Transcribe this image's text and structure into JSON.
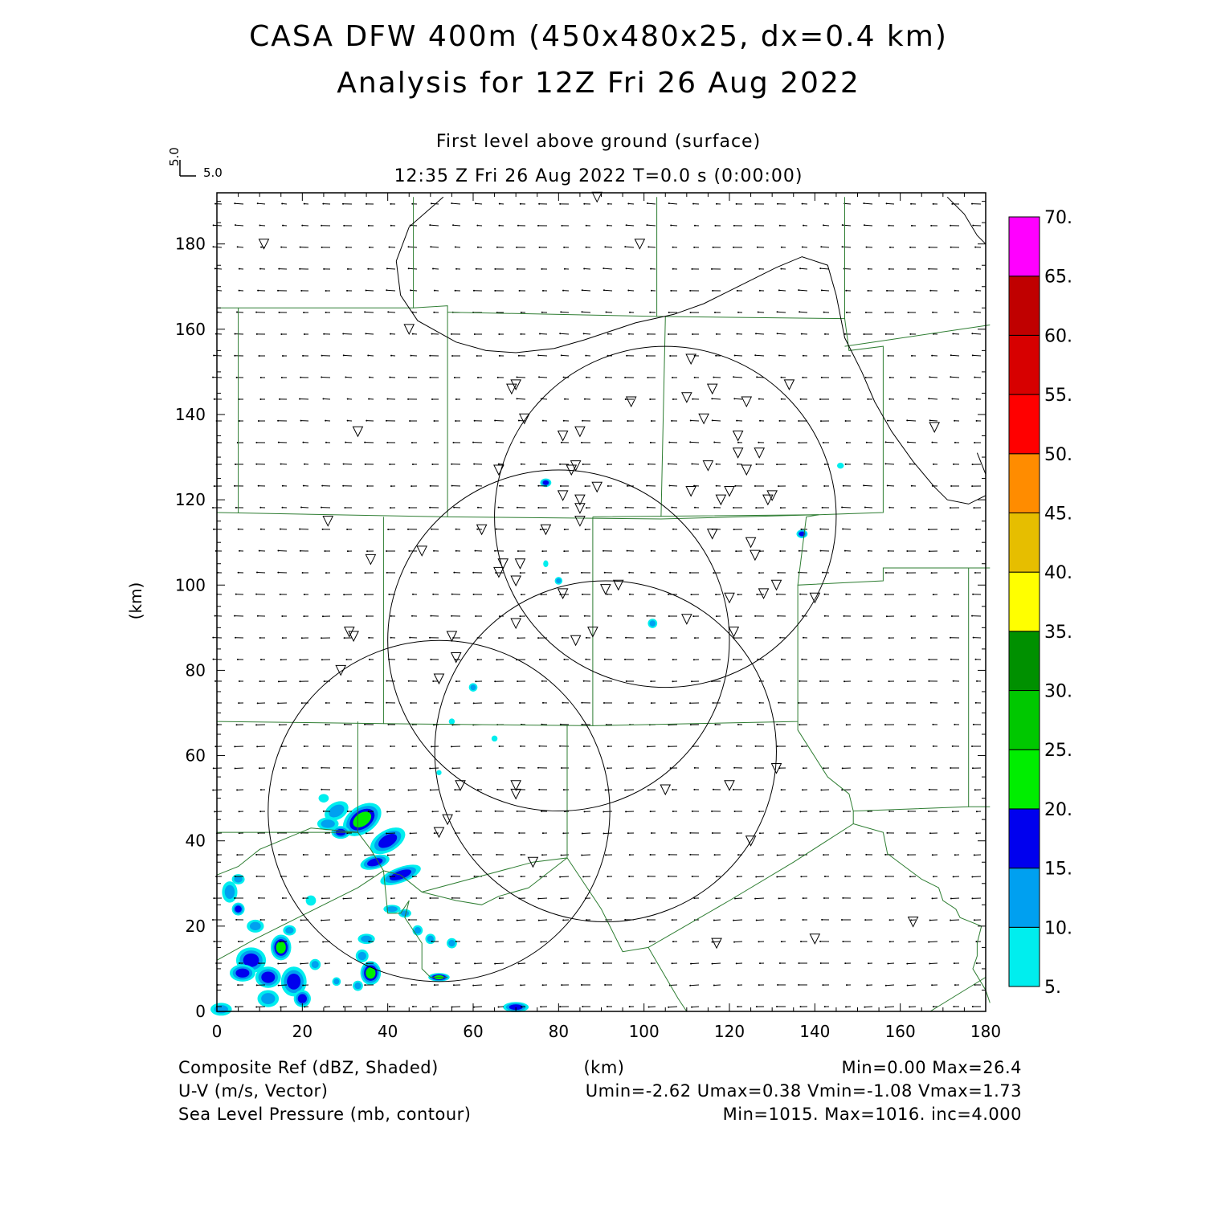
{
  "title": {
    "line1": "CASA DFW 400m (450x480x25, dx=0.4 km)",
    "line2": "Analysis for 12Z Fri 26 Aug 2022"
  },
  "subtitle": {
    "level": "First level above ground (surface)",
    "time": "12:35 Z Fri 26 Aug 2022    T=0.0 s (0:00:00)"
  },
  "vector_key": {
    "v": "5.0",
    "u": "5.0"
  },
  "axes": {
    "x": {
      "label": "(km)",
      "range": [
        0,
        180
      ],
      "ticks": [
        "0",
        "20",
        "40",
        "60",
        "80",
        "100",
        "120",
        "140",
        "160",
        "180"
      ]
    },
    "y": {
      "label": "(km)",
      "range": [
        0,
        192
      ],
      "ticks": [
        "0",
        "20",
        "40",
        "60",
        "80",
        "100",
        "120",
        "140",
        "160",
        "180"
      ]
    }
  },
  "colorbar": {
    "labels": [
      "5.",
      "10.",
      "15.",
      "20.",
      "25.",
      "30.",
      "35.",
      "40.",
      "45.",
      "50.",
      "55.",
      "60.",
      "65.",
      "70."
    ],
    "colors": [
      "#00eeee",
      "#00a0f0",
      "#0000ee",
      "#00ee00",
      "#00c800",
      "#009000",
      "#ffff00",
      "#e6be00",
      "#ff8c00",
      "#ff0000",
      "#d70000",
      "#c00000",
      "#ff00ff"
    ]
  },
  "footer": {
    "ref_label": "Composite Ref (dBZ, Shaded)",
    "ref_stats": "Min=0.00 Max=26.4",
    "km_label": "(km)",
    "wind_label": "U-V (m/s, Vector)",
    "wind_stats": "Umin=-2.62 Umax=0.38 Vmin=-1.08 Vmax=1.73",
    "slp_label": "Sea Level Pressure (mb, contour)",
    "slp_stats": "Min=1015. Max=1016. inc=4.000"
  },
  "map_data": {
    "radar_rings_km": [
      {
        "cx": 105,
        "cy": 116,
        "r": 40
      },
      {
        "cx": 80,
        "cy": 87,
        "r": 40
      },
      {
        "cx": 91,
        "cy": 61,
        "r": 40
      },
      {
        "cx": 52,
        "cy": 47,
        "r": 40
      }
    ],
    "stations_km": [
      [
        89,
        191
      ],
      [
        11,
        180
      ],
      [
        99,
        180
      ],
      [
        45,
        160
      ],
      [
        70,
        147
      ],
      [
        69,
        146
      ],
      [
        111,
        153
      ],
      [
        116,
        146
      ],
      [
        134,
        147
      ],
      [
        97,
        143
      ],
      [
        110,
        144
      ],
      [
        124,
        143
      ],
      [
        72,
        139
      ],
      [
        114,
        139
      ],
      [
        81,
        135
      ],
      [
        85,
        136
      ],
      [
        122,
        135
      ],
      [
        168,
        137
      ],
      [
        33,
        136
      ],
      [
        122,
        131
      ],
      [
        127,
        131
      ],
      [
        115,
        128
      ],
      [
        124,
        127
      ],
      [
        66,
        127
      ],
      [
        83,
        127
      ],
      [
        84,
        128
      ],
      [
        89,
        123
      ],
      [
        81,
        121
      ],
      [
        111,
        122
      ],
      [
        120,
        122
      ],
      [
        130,
        121
      ],
      [
        129,
        120
      ],
      [
        118,
        120
      ],
      [
        85,
        120
      ],
      [
        85,
        118
      ],
      [
        85,
        115
      ],
      [
        26,
        115
      ],
      [
        62,
        113
      ],
      [
        77,
        113
      ],
      [
        116,
        112
      ],
      [
        125,
        110
      ],
      [
        126,
        107
      ],
      [
        48,
        108
      ],
      [
        36,
        106
      ],
      [
        67,
        105
      ],
      [
        71,
        105
      ],
      [
        66,
        103
      ],
      [
        70,
        101
      ],
      [
        81,
        98
      ],
      [
        91,
        99
      ],
      [
        94,
        100
      ],
      [
        120,
        97
      ],
      [
        131,
        100
      ],
      [
        128,
        98
      ],
      [
        140,
        97
      ],
      [
        31,
        89
      ],
      [
        32,
        88
      ],
      [
        29,
        80
      ],
      [
        55,
        88
      ],
      [
        56,
        83
      ],
      [
        52,
        78
      ],
      [
        70,
        91
      ],
      [
        84,
        87
      ],
      [
        88,
        89
      ],
      [
        110,
        92
      ],
      [
        121,
        89
      ],
      [
        57,
        53
      ],
      [
        70,
        53
      ],
      [
        70,
        51
      ],
      [
        105,
        52
      ],
      [
        120,
        53
      ],
      [
        131,
        57
      ],
      [
        54,
        45
      ],
      [
        52,
        42
      ],
      [
        125,
        40
      ],
      [
        74,
        35
      ],
      [
        117,
        16
      ],
      [
        140,
        17
      ],
      [
        163,
        21
      ]
    ],
    "reflectivity_cells": [
      {
        "x": 34,
        "y": 45,
        "rx": 5,
        "ry": 3.2,
        "rot": -35,
        "max_bin": 4
      },
      {
        "x": 40,
        "y": 40,
        "rx": 4.5,
        "ry": 2.5,
        "rot": -30,
        "max_bin": 3
      },
      {
        "x": 37,
        "y": 35,
        "rx": 3.5,
        "ry": 1.6,
        "rot": -15,
        "max_bin": 3
      },
      {
        "x": 43,
        "y": 32,
        "rx": 5,
        "ry": 1.8,
        "rot": -20,
        "max_bin": 3
      },
      {
        "x": 28,
        "y": 47,
        "rx": 3,
        "ry": 2,
        "rot": -30,
        "max_bin": 2
      },
      {
        "x": 29,
        "y": 42,
        "rx": 2.2,
        "ry": 1.5,
        "rot": 0,
        "max_bin": 3
      },
      {
        "x": 26,
        "y": 44,
        "rx": 2.5,
        "ry": 1.5,
        "rot": 0,
        "max_bin": 2
      },
      {
        "x": 36,
        "y": 9,
        "rx": 2.4,
        "ry": 2.8,
        "rot": 0,
        "max_bin": 4
      },
      {
        "x": 15,
        "y": 15,
        "rx": 2.4,
        "ry": 3,
        "rot": 0,
        "max_bin": 4
      },
      {
        "x": 8,
        "y": 12,
        "rx": 3.5,
        "ry": 3,
        "rot": 0,
        "max_bin": 3
      },
      {
        "x": 12,
        "y": 8,
        "rx": 3,
        "ry": 2.5,
        "rot": 0,
        "max_bin": 3
      },
      {
        "x": 18,
        "y": 7,
        "rx": 3,
        "ry": 3.5,
        "rot": 0,
        "max_bin": 3
      },
      {
        "x": 6,
        "y": 9,
        "rx": 3,
        "ry": 2,
        "rot": 0,
        "max_bin": 3
      },
      {
        "x": 20,
        "y": 3,
        "rx": 2,
        "ry": 2,
        "rot": 0,
        "max_bin": 3
      },
      {
        "x": 12,
        "y": 3,
        "rx": 2.5,
        "ry": 2,
        "rot": 0,
        "max_bin": 2
      },
      {
        "x": 3,
        "y": 28,
        "rx": 1.8,
        "ry": 2.5,
        "rot": 0,
        "max_bin": 2
      },
      {
        "x": 5,
        "y": 24,
        "rx": 1.5,
        "ry": 1.5,
        "rot": 0,
        "max_bin": 3
      },
      {
        "x": 9,
        "y": 20,
        "rx": 2,
        "ry": 1.5,
        "rot": 0,
        "max_bin": 2
      },
      {
        "x": 5,
        "y": 31,
        "rx": 1.5,
        "ry": 1.2,
        "rot": 0,
        "max_bin": 2
      },
      {
        "x": 1,
        "y": 0.5,
        "rx": 2.5,
        "ry": 1.5,
        "rot": 0,
        "max_bin": 2
      },
      {
        "x": 35,
        "y": 17,
        "rx": 2,
        "ry": 1.2,
        "rot": 0,
        "max_bin": 2
      },
      {
        "x": 34,
        "y": 13,
        "rx": 1.5,
        "ry": 1.5,
        "rot": 0,
        "max_bin": 2
      },
      {
        "x": 33,
        "y": 6,
        "rx": 1.2,
        "ry": 1.2,
        "rot": 0,
        "max_bin": 2
      },
      {
        "x": 52,
        "y": 8,
        "rx": 2.5,
        "ry": 1,
        "rot": 0,
        "max_bin": 4
      },
      {
        "x": 70,
        "y": 1,
        "rx": 3,
        "ry": 1.2,
        "rot": 0,
        "max_bin": 3
      },
      {
        "x": 47,
        "y": 19,
        "rx": 1.2,
        "ry": 1.2,
        "rot": 0,
        "max_bin": 2
      },
      {
        "x": 50,
        "y": 17,
        "rx": 1.2,
        "ry": 1.2,
        "rot": 0,
        "max_bin": 2
      },
      {
        "x": 55,
        "y": 16,
        "rx": 1.2,
        "ry": 1.2,
        "rot": 0,
        "max_bin": 2
      },
      {
        "x": 44,
        "y": 23,
        "rx": 1.5,
        "ry": 1,
        "rot": 0,
        "max_bin": 2
      },
      {
        "x": 41,
        "y": 24,
        "rx": 2,
        "ry": 1,
        "rot": 0,
        "max_bin": 2
      },
      {
        "x": 22,
        "y": 26,
        "rx": 1.2,
        "ry": 1.2,
        "rot": 0,
        "max_bin": 1
      },
      {
        "x": 77,
        "y": 124,
        "rx": 1.3,
        "ry": 1,
        "rot": 0,
        "max_bin": 3
      },
      {
        "x": 137,
        "y": 112,
        "rx": 1.3,
        "ry": 1,
        "rot": 0,
        "max_bin": 3
      },
      {
        "x": 102,
        "y": 91,
        "rx": 1.1,
        "ry": 1.1,
        "rot": 0,
        "max_bin": 2
      },
      {
        "x": 60,
        "y": 76,
        "rx": 1,
        "ry": 1,
        "rot": 0,
        "max_bin": 2
      },
      {
        "x": 80,
        "y": 101,
        "rx": 0.9,
        "ry": 0.9,
        "rot": 0,
        "max_bin": 2
      },
      {
        "x": 146,
        "y": 128,
        "rx": 0.8,
        "ry": 0.7,
        "rot": 0,
        "max_bin": 1
      },
      {
        "x": 65,
        "y": 64,
        "rx": 0.7,
        "ry": 0.7,
        "rot": 0,
        "max_bin": 1
      },
      {
        "x": 55,
        "y": 68,
        "rx": 0.7,
        "ry": 0.7,
        "rot": 0,
        "max_bin": 1
      },
      {
        "x": 77,
        "y": 105,
        "rx": 0.6,
        "ry": 0.8,
        "rot": 0,
        "max_bin": 1
      },
      {
        "x": 52,
        "y": 56,
        "rx": 0.6,
        "ry": 0.6,
        "rot": 0,
        "max_bin": 1
      },
      {
        "x": 28,
        "y": 7,
        "rx": 1,
        "ry": 1,
        "rot": 0,
        "max_bin": 2
      },
      {
        "x": 25,
        "y": 50,
        "rx": 1.2,
        "ry": 1,
        "rot": 0,
        "max_bin": 1
      },
      {
        "x": 17,
        "y": 19,
        "rx": 1.5,
        "ry": 1.2,
        "rot": 0,
        "max_bin": 2
      },
      {
        "x": 23,
        "y": 11,
        "rx": 1.3,
        "ry": 1.3,
        "rot": 0,
        "max_bin": 2
      }
    ],
    "slp_contours_km": [
      [
        [
          53,
          191
        ],
        [
          45,
          184
        ],
        [
          42,
          176
        ],
        [
          43,
          168
        ],
        [
          47,
          162
        ],
        [
          56,
          157
        ],
        [
          63,
          155
        ],
        [
          70,
          154.5
        ],
        [
          79,
          155.5
        ],
        [
          86,
          157.5
        ],
        [
          92,
          159.5
        ],
        [
          98,
          161.5
        ],
        [
          107,
          163.5
        ],
        [
          114,
          166
        ],
        [
          122,
          170
        ],
        [
          131,
          174.5
        ],
        [
          137,
          177
        ],
        [
          143,
          175
        ],
        [
          145,
          168
        ],
        [
          147,
          158
        ],
        [
          151,
          150
        ],
        [
          154,
          143
        ],
        [
          158,
          136
        ],
        [
          163,
          129
        ],
        [
          168,
          123
        ],
        [
          171,
          120
        ],
        [
          176,
          119
        ],
        [
          180,
          121
        ],
        [
          181,
          126
        ],
        [
          178,
          131
        ]
      ],
      [
        [
          171,
          191
        ],
        [
          175,
          187
        ],
        [
          178,
          182
        ],
        [
          181,
          180
        ]
      ]
    ],
    "county_lines_km": [
      [
        [
          0,
          165
        ],
        [
          46,
          165
        ],
        [
          46,
          191
        ]
      ],
      [
        [
          46,
          165
        ],
        [
          54,
          165.5
        ],
        [
          54,
          116
        ],
        [
          0,
          117
        ]
      ],
      [
        [
          5,
          165
        ],
        [
          5,
          117
        ]
      ],
      [
        [
          54,
          164
        ],
        [
          103,
          163
        ],
        [
          103,
          191
        ]
      ],
      [
        [
          103,
          163
        ],
        [
          147,
          162.5
        ],
        [
          147,
          191
        ]
      ],
      [
        [
          147,
          162.5
        ],
        [
          148,
          155
        ],
        [
          156,
          156
        ],
        [
          156,
          117
        ],
        [
          141,
          116.5
        ]
      ],
      [
        [
          54,
          116
        ],
        [
          104,
          115.5
        ],
        [
          141,
          116.5
        ]
      ],
      [
        [
          147,
          156
        ],
        [
          181,
          161
        ]
      ],
      [
        [
          105,
          163
        ],
        [
          104,
          116
        ]
      ],
      [
        [
          39,
          116
        ],
        [
          39,
          67.5
        ],
        [
          0,
          68
        ]
      ],
      [
        [
          88,
          116
        ],
        [
          88,
          67
        ],
        [
          39,
          67.5
        ]
      ],
      [
        [
          88,
          116
        ],
        [
          141,
          116.5
        ],
        [
          138,
          116
        ],
        [
          136,
          100
        ],
        [
          156,
          101
        ],
        [
          156,
          104
        ],
        [
          181,
          104
        ]
      ],
      [
        [
          136,
          100
        ],
        [
          136,
          68
        ],
        [
          88,
          67
        ]
      ],
      [
        [
          176,
          104
        ],
        [
          176,
          48
        ],
        [
          181,
          48
        ]
      ],
      [
        [
          136,
          68
        ],
        [
          136,
          66
        ],
        [
          143,
          55
        ],
        [
          148,
          51
        ],
        [
          149,
          47
        ],
        [
          176,
          48
        ]
      ],
      [
        [
          33,
          68
        ],
        [
          33,
          42
        ],
        [
          0,
          42
        ]
      ],
      [
        [
          82,
          67
        ],
        [
          82,
          36
        ],
        [
          74,
          35
        ],
        [
          48,
          28
        ]
      ],
      [
        [
          0,
          32
        ],
        [
          5,
          34
        ],
        [
          10,
          38
        ],
        [
          22,
          43
        ],
        [
          33,
          42
        ]
      ],
      [
        [
          33,
          42
        ],
        [
          36,
          38
        ],
        [
          39,
          33
        ],
        [
          43,
          32
        ]
      ],
      [
        [
          43,
          32
        ],
        [
          48,
          28
        ],
        [
          56,
          26
        ],
        [
          62,
          25
        ],
        [
          66,
          27
        ],
        [
          73,
          29
        ]
      ],
      [
        [
          73,
          29
        ],
        [
          82,
          36
        ]
      ],
      [
        [
          82,
          36
        ],
        [
          90,
          24
        ],
        [
          95,
          14
        ],
        [
          101,
          15
        ],
        [
          120,
          26
        ],
        [
          135,
          35
        ],
        [
          149,
          44
        ]
      ],
      [
        [
          149,
          47
        ],
        [
          149,
          44
        ],
        [
          156,
          42
        ],
        [
          157,
          37
        ],
        [
          161,
          34
        ],
        [
          165,
          31
        ],
        [
          169,
          29
        ],
        [
          170,
          26
        ],
        [
          173,
          24
        ],
        [
          174,
          22
        ],
        [
          179,
          20
        ],
        [
          178,
          16
        ],
        [
          178,
          13
        ],
        [
          177,
          10
        ],
        [
          180,
          5
        ],
        [
          181,
          2
        ]
      ],
      [
        [
          101,
          15
        ],
        [
          108,
          3
        ],
        [
          110,
          0
        ]
      ],
      [
        [
          0,
          12
        ],
        [
          9,
          17
        ],
        [
          19,
          22
        ],
        [
          33,
          29
        ],
        [
          39,
          33
        ]
      ],
      [
        [
          39,
          33
        ],
        [
          40,
          23
        ],
        [
          43,
          23
        ],
        [
          45,
          26
        ],
        [
          44,
          22
        ],
        [
          48,
          16
        ],
        [
          48,
          10
        ],
        [
          50,
          8
        ],
        [
          54,
          8
        ]
      ],
      [
        [
          167,
          0
        ],
        [
          180,
          8
        ]
      ]
    ],
    "wind_pattern": {
      "note": "uniform light easterly/northeasterly surface flow over domain",
      "vectors_per_row": 36,
      "rows": 38
    }
  }
}
